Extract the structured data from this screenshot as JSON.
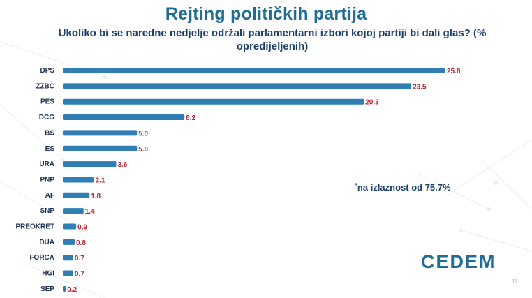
{
  "title": "Rejting političkih partija",
  "subtitle": "Ukoliko bi se naredne nedjelje održali parlamentarni izbori kojoj partiji bi dali glas? (% opredijeljenih)",
  "note": "na izlaznost od 75.7%",
  "logo": "CEDEM",
  "page_number": "12",
  "colors": {
    "bar": "#2f7fb4",
    "value_label": "#c0232c",
    "title": "#1f6d95"
  },
  "chart_data": {
    "type": "bar",
    "orientation": "horizontal",
    "title": "Rejting političkih partija",
    "subtitle": "Ukoliko bi se naredne nedjelje održali parlamentarni izbori kojoj partiji bi dali glas? (% opredijeljenih)",
    "xlabel": "",
    "ylabel": "",
    "xlim": [
      0,
      25.8
    ],
    "grid": false,
    "legend": "none",
    "categories": [
      "DPS",
      "ZZBC",
      "PES",
      "DCG",
      "BS",
      "ES",
      "URA",
      "PNP",
      "AF",
      "SNP",
      "PREOKRET",
      "DUA",
      "FORCA",
      "HGI",
      "SEP"
    ],
    "values": [
      25.8,
      23.5,
      20.3,
      8.2,
      5.0,
      5.0,
      3.6,
      2.1,
      1.8,
      1.4,
      0.9,
      0.8,
      0.7,
      0.7,
      0.2
    ],
    "value_labels": [
      "25.8",
      "23.5",
      "20.3",
      "8.2",
      "5.0",
      "5.0",
      "3.6",
      "2.1",
      "1.8",
      "1.4",
      "0.9",
      "0.8",
      "0.7",
      "0.7",
      "0.2"
    ]
  }
}
